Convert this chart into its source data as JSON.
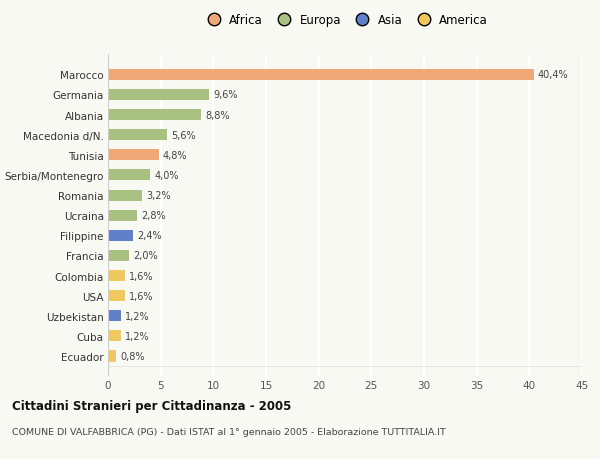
{
  "countries": [
    "Marocco",
    "Germania",
    "Albania",
    "Macedonia d/N.",
    "Tunisia",
    "Serbia/Montenegro",
    "Romania",
    "Ucraina",
    "Filippine",
    "Francia",
    "Colombia",
    "USA",
    "Uzbekistan",
    "Cuba",
    "Ecuador"
  ],
  "values": [
    40.4,
    9.6,
    8.8,
    5.6,
    4.8,
    4.0,
    3.2,
    2.8,
    2.4,
    2.0,
    1.6,
    1.6,
    1.2,
    1.2,
    0.8
  ],
  "labels": [
    "40,4%",
    "9,6%",
    "8,8%",
    "5,6%",
    "4,8%",
    "4,0%",
    "3,2%",
    "2,8%",
    "2,4%",
    "2,0%",
    "1,6%",
    "1,6%",
    "1,2%",
    "1,2%",
    "0,8%"
  ],
  "continents": [
    "Africa",
    "Europa",
    "Europa",
    "Europa",
    "Africa",
    "Europa",
    "Europa",
    "Europa",
    "Asia",
    "Europa",
    "America",
    "America",
    "Asia",
    "America",
    "America"
  ],
  "colors": {
    "Africa": "#F0A878",
    "Europa": "#A8C080",
    "Asia": "#6080C8",
    "America": "#F0C860"
  },
  "xlim": [
    0,
    45
  ],
  "xticks": [
    0,
    5,
    10,
    15,
    20,
    25,
    30,
    35,
    40,
    45
  ],
  "title": "Cittadini Stranieri per Cittadinanza - 2005",
  "subtitle": "COMUNE DI VALFABBRICA (PG) - Dati ISTAT al 1° gennaio 2005 - Elaborazione TUTTITALIA.IT",
  "background_color": "#f9f9f3",
  "grid_color": "#ffffff",
  "bar_height": 0.55
}
